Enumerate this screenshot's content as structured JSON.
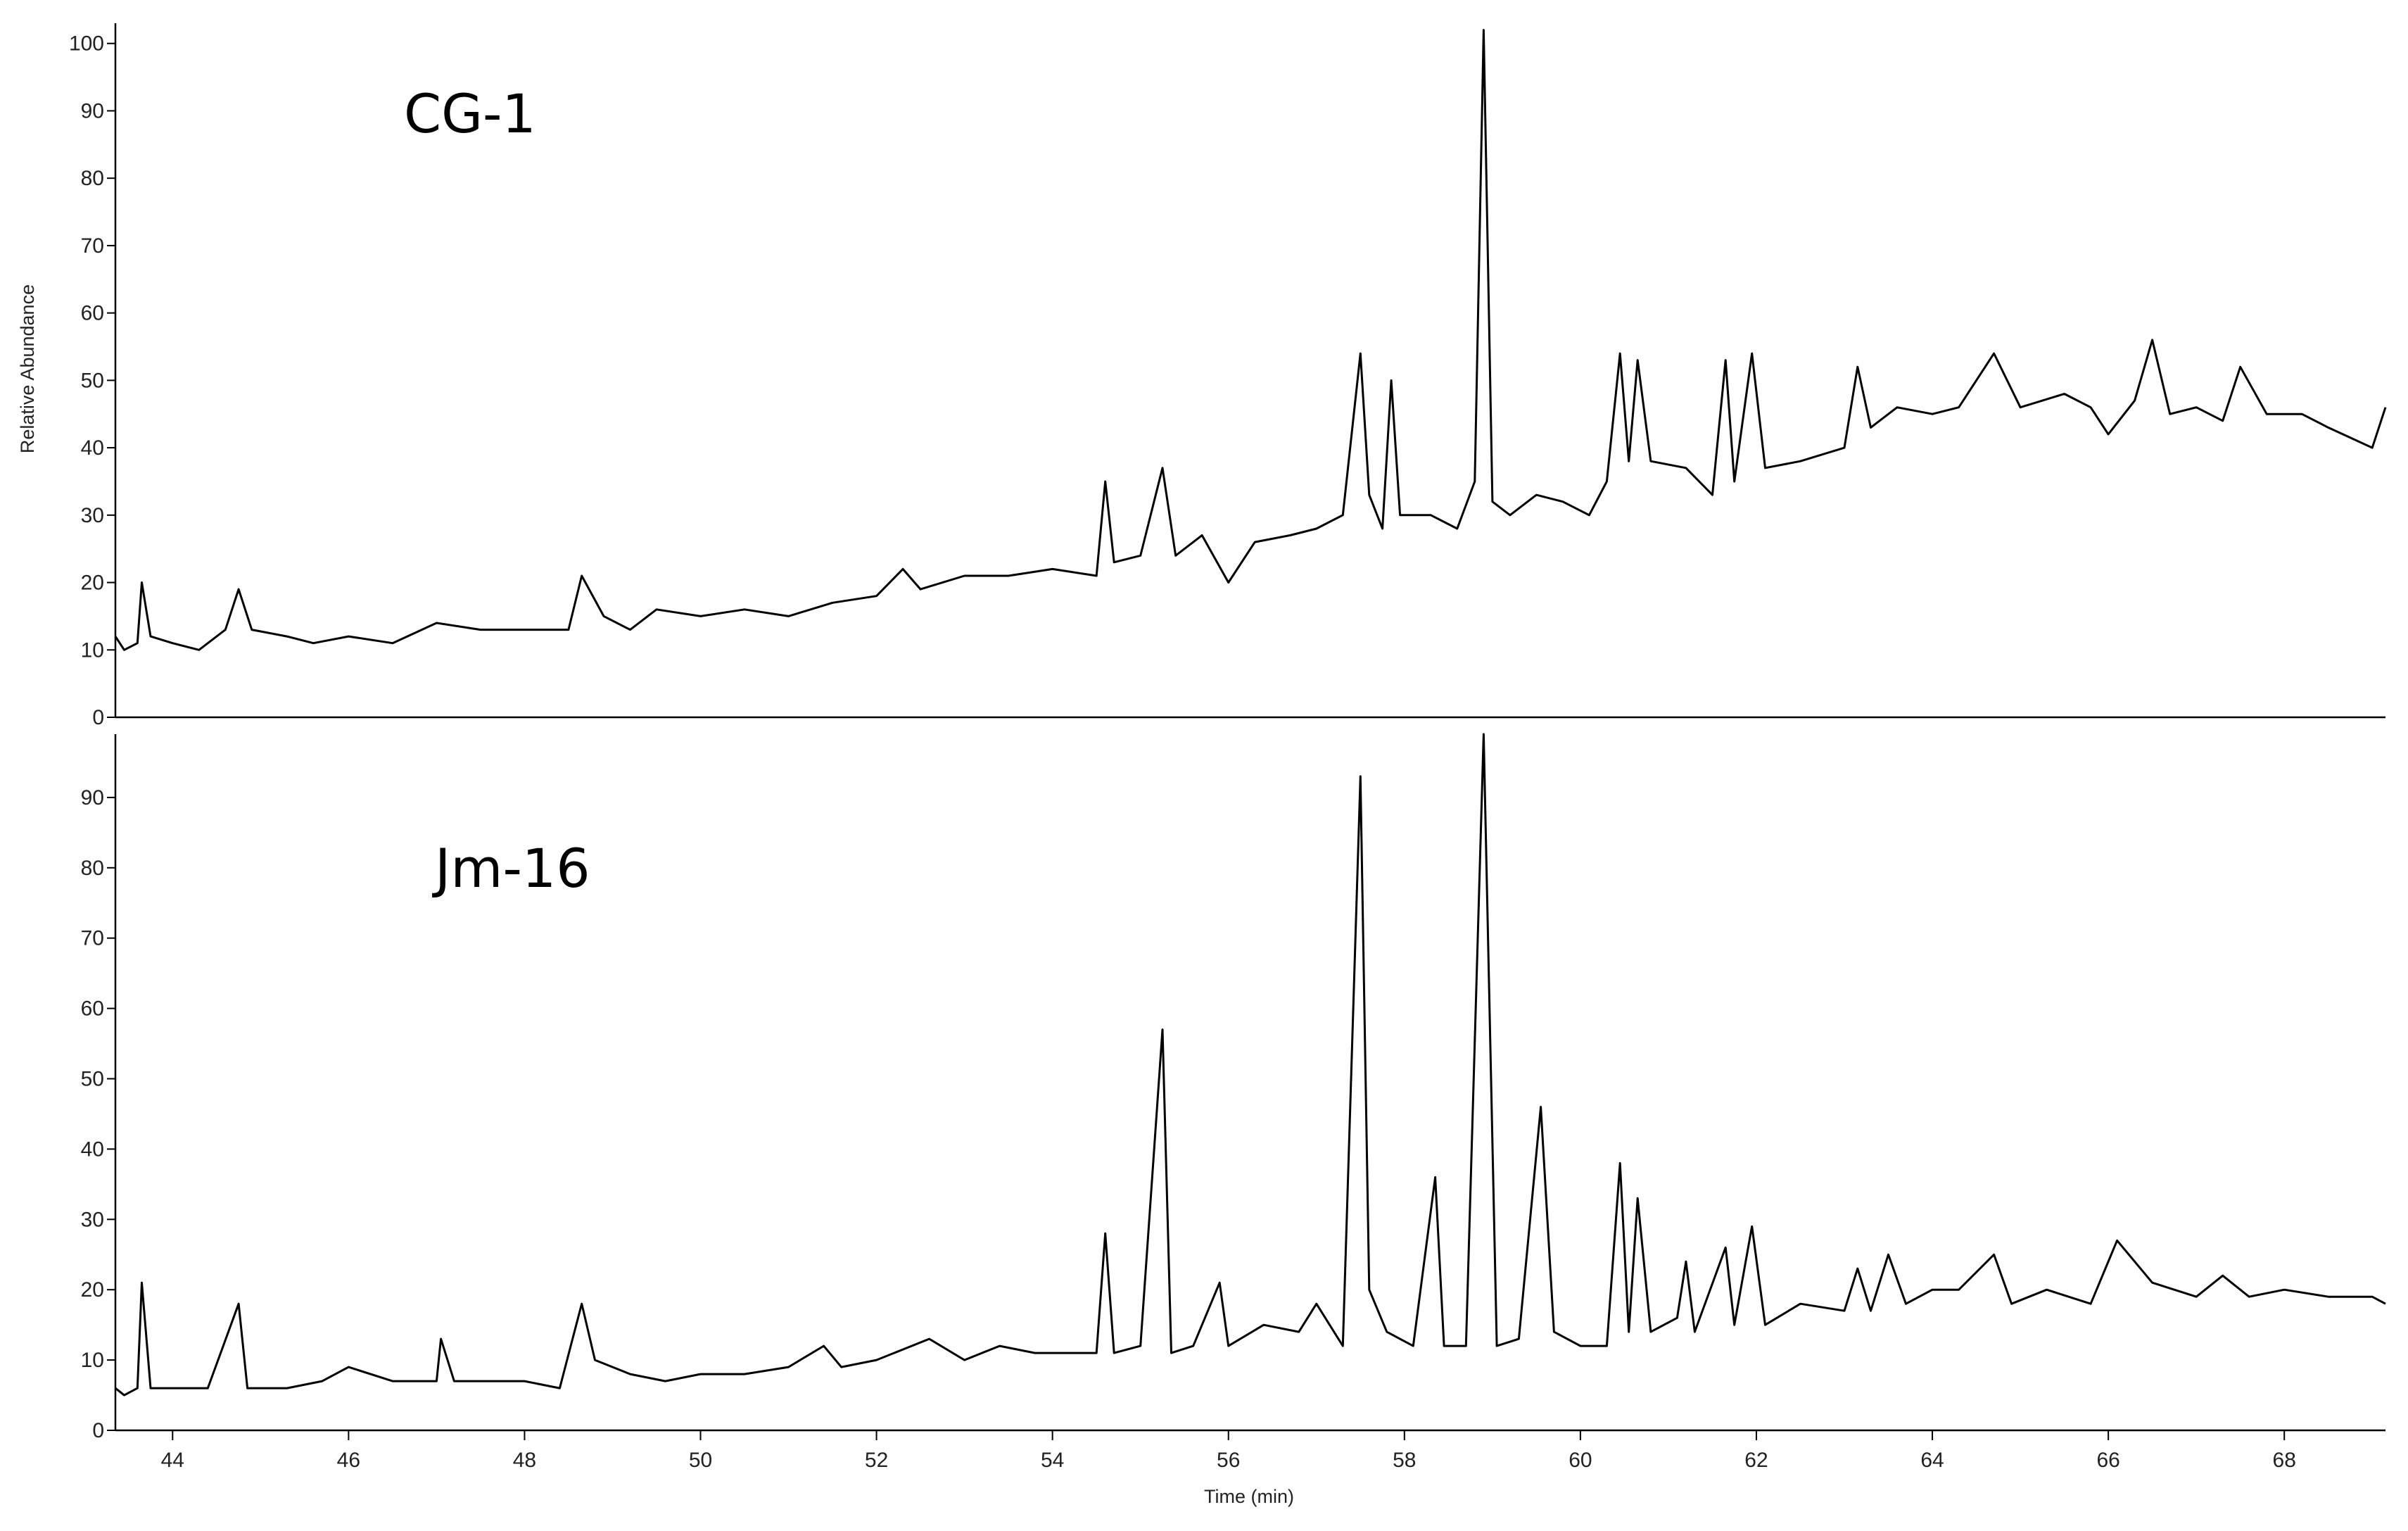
{
  "chart_data": [
    {
      "type": "line",
      "annotation": "CG-1",
      "ylabel": "Relative Abundance",
      "color": "#000000",
      "xlim": [
        43.35,
        69.15
      ],
      "ylim": [
        0,
        103
      ],
      "yticks": [
        0,
        10,
        20,
        30,
        40,
        50,
        60,
        70,
        80,
        90,
        100
      ],
      "x": [
        43.35,
        43.45,
        43.6,
        43.65,
        43.75,
        44.0,
        44.3,
        44.6,
        44.75,
        44.9,
        45.3,
        45.6,
        46.0,
        46.5,
        47.0,
        47.5,
        48.0,
        48.5,
        48.65,
        48.9,
        49.2,
        49.5,
        50.0,
        50.5,
        51.0,
        51.5,
        52.0,
        52.3,
        52.5,
        53.0,
        53.5,
        54.0,
        54.5,
        54.6,
        54.7,
        55.0,
        55.25,
        55.4,
        55.7,
        56.0,
        56.3,
        56.7,
        57.0,
        57.3,
        57.5,
        57.6,
        57.75,
        57.85,
        57.95,
        58.3,
        58.6,
        58.8,
        58.9,
        59.0,
        59.2,
        59.5,
        59.8,
        60.1,
        60.3,
        60.45,
        60.55,
        60.65,
        60.8,
        61.2,
        61.5,
        61.65,
        61.75,
        61.95,
        62.1,
        62.5,
        63.0,
        63.15,
        63.3,
        63.6,
        64.0,
        64.3,
        64.7,
        65.0,
        65.5,
        65.8,
        66.0,
        66.3,
        66.5,
        66.7,
        67.0,
        67.3,
        67.5,
        67.8,
        68.2,
        68.5,
        69.0,
        69.15
      ],
      "values": [
        12,
        10,
        11,
        20,
        12,
        11,
        10,
        13,
        19,
        13,
        12,
        11,
        12,
        11,
        14,
        13,
        13,
        13,
        21,
        15,
        13,
        16,
        15,
        16,
        15,
        17,
        18,
        22,
        19,
        21,
        21,
        22,
        21,
        35,
        23,
        24,
        37,
        24,
        27,
        20,
        26,
        27,
        28,
        30,
        54,
        33,
        28,
        50,
        30,
        30,
        28,
        35,
        102,
        32,
        30,
        33,
        32,
        30,
        35,
        54,
        38,
        53,
        38,
        37,
        33,
        53,
        35,
        54,
        37,
        38,
        40,
        52,
        43,
        46,
        45,
        46,
        54,
        46,
        48,
        46,
        42,
        47,
        56,
        45,
        46,
        44,
        52,
        45,
        45,
        43,
        40,
        46
      ]
    },
    {
      "type": "line",
      "annotation": "Jm-16",
      "xlabel": "Time (min)",
      "color": "#000000",
      "xlim": [
        43.35,
        69.15
      ],
      "ylim": [
        0,
        99
      ],
      "yticks": [
        0,
        10,
        20,
        30,
        40,
        50,
        60,
        70,
        80,
        90
      ],
      "xticks": [
        44,
        46,
        48,
        50,
        52,
        54,
        56,
        58,
        60,
        62,
        64,
        66,
        68
      ],
      "x": [
        43.35,
        43.45,
        43.6,
        43.65,
        43.75,
        44.0,
        44.4,
        44.75,
        44.85,
        45.3,
        45.7,
        46.0,
        46.5,
        47.0,
        47.05,
        47.2,
        47.6,
        48.0,
        48.4,
        48.65,
        48.8,
        49.2,
        49.6,
        50.0,
        50.5,
        51.0,
        51.4,
        51.6,
        52.0,
        52.6,
        53.0,
        53.4,
        53.8,
        54.2,
        54.5,
        54.6,
        54.7,
        55.0,
        55.25,
        55.35,
        55.6,
        55.9,
        56.0,
        56.4,
        56.8,
        57.0,
        57.3,
        57.5,
        57.6,
        57.8,
        58.1,
        58.35,
        58.45,
        58.7,
        58.9,
        59.05,
        59.3,
        59.55,
        59.7,
        60.0,
        60.3,
        60.45,
        60.55,
        60.65,
        60.8,
        61.1,
        61.2,
        61.3,
        61.65,
        61.75,
        61.95,
        62.1,
        62.5,
        63.0,
        63.15,
        63.3,
        63.5,
        63.7,
        64.0,
        64.3,
        64.7,
        64.9,
        65.3,
        65.8,
        66.1,
        66.5,
        67.0,
        67.3,
        67.6,
        68.0,
        68.5,
        69.0,
        69.15
      ],
      "values": [
        6,
        5,
        6,
        21,
        6,
        6,
        6,
        18,
        6,
        6,
        7,
        9,
        7,
        7,
        13,
        7,
        7,
        7,
        6,
        18,
        10,
        8,
        7,
        8,
        8,
        9,
        12,
        9,
        10,
        13,
        10,
        12,
        11,
        11,
        11,
        28,
        11,
        12,
        57,
        11,
        12,
        21,
        12,
        15,
        14,
        18,
        12,
        93,
        20,
        14,
        12,
        36,
        12,
        12,
        99,
        12,
        13,
        46,
        14,
        12,
        12,
        38,
        14,
        33,
        14,
        16,
        24,
        14,
        26,
        15,
        29,
        15,
        18,
        17,
        23,
        17,
        25,
        18,
        20,
        20,
        25,
        18,
        20,
        18,
        27,
        21,
        19,
        22,
        19,
        20,
        19,
        19,
        18
      ]
    }
  ]
}
